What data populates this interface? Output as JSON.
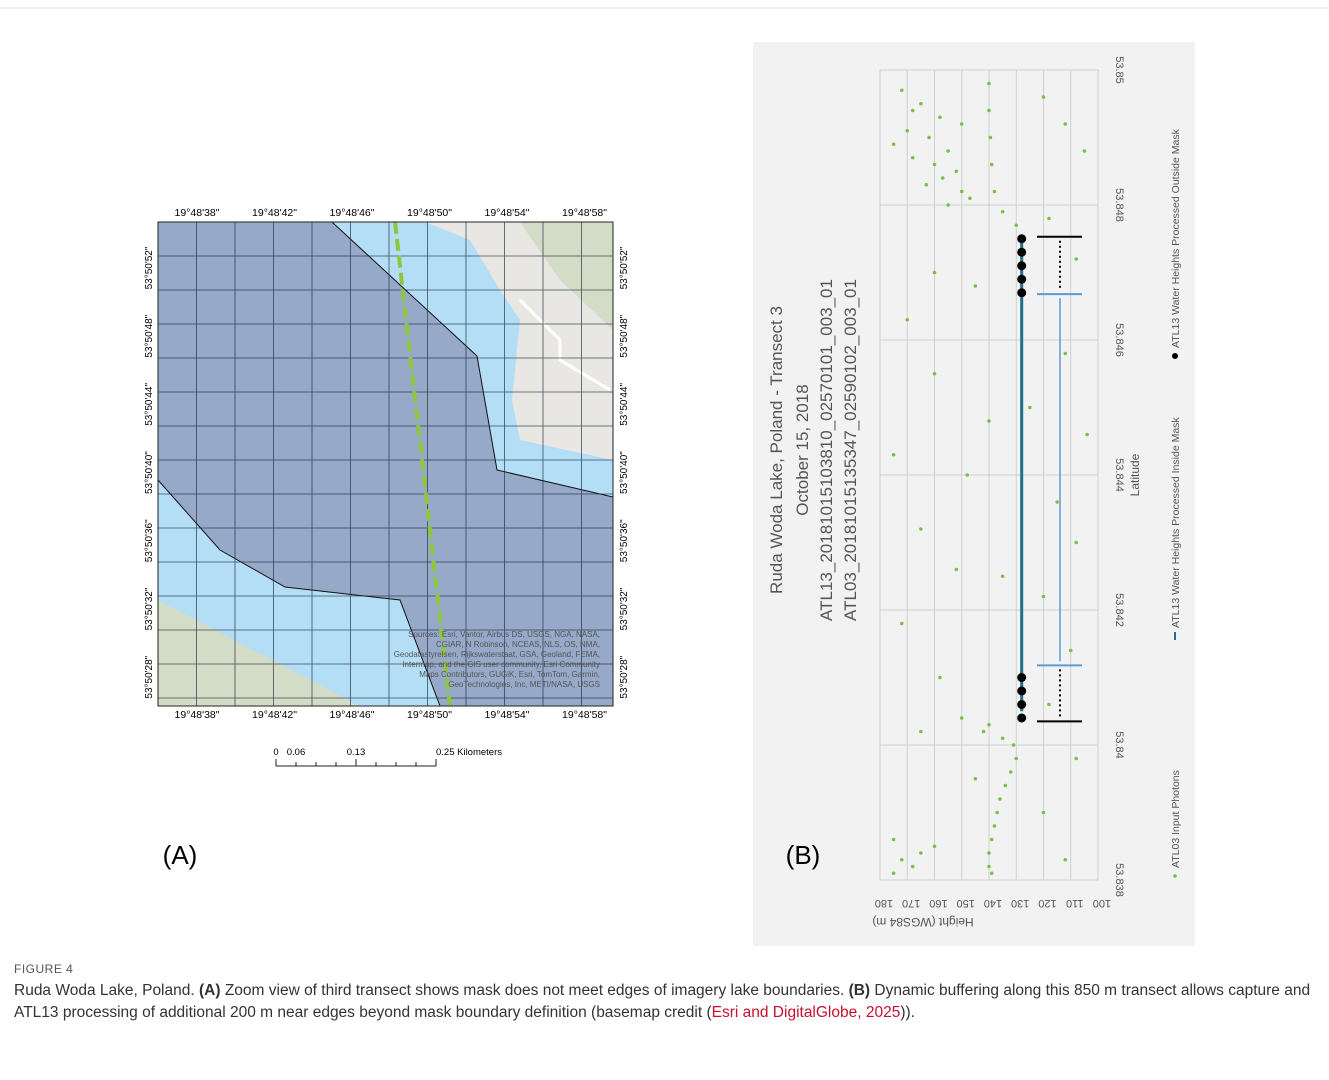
{
  "figure": {
    "panel_a": {
      "label": "(A)",
      "lon_labels": [
        "19°48'38\"",
        "19°48'42\"",
        "19°48'46\"",
        "19°48'50\"",
        "19°48'54\"",
        "19°48'58\""
      ],
      "lat_labels": [
        "53°50'52\"",
        "53°50'48\"",
        "53°50'44\"",
        "53°50'40\"",
        "53°50'36\"",
        "53°50'32\"",
        "53°50'28\""
      ],
      "attribution": [
        "Sources: Esri, Vantor, Airbus DS, USGS, NGA, NASA,",
        "CGIAR, N Robinson, NCEAS, NLS, OS, NMA,",
        "Geodatastyrelsen, Rijkswaterstaat, GSA, Geoland, FEMA,",
        "Intermap, and the GIS user community, Esri Community",
        "Maps Contributors, GUGiK, Esri, TomTom, Garmin,",
        "GeoTechnologies, Inc, METI/NASA, USGS"
      ],
      "scale_labels": [
        "0",
        "0.06",
        "0.13",
        "0.25 Kilometers"
      ]
    },
    "panel_b": {
      "label": "(B)",
      "chart_data": {
        "type": "scatter",
        "title": "Ruda Woda Lake, Poland - Transect 3",
        "subtitles": [
          "October 15, 2018",
          "ATL13_20181015103810_02570101_003_01",
          "ATL03_20181015135347_02590102_003_01"
        ],
        "x_label": "Latitude",
        "y_label": "Height (WGS84 m)",
        "xlim": [
          53.838,
          53.85
        ],
        "xticks": [
          53.838,
          53.84,
          53.842,
          53.844,
          53.846,
          53.848,
          53.85
        ],
        "ylim": [
          100,
          180
        ],
        "yticks": [
          100,
          110,
          120,
          130,
          140,
          150,
          160,
          170,
          180
        ],
        "grid": true,
        "series": [
          {
            "name": "ATL03 Input Photons",
            "color": "#7ac143",
            "mode": "points",
            "x": [
              53.8497,
              53.8495,
              53.8493,
              53.8491,
              53.849,
              53.8488,
              53.8487,
              53.8486,
              53.8485,
              53.8489,
              53.8492,
              53.8494,
              53.8484,
              53.8483,
              53.8482,
              53.8481,
              53.848,
              53.8498,
              53.8494,
              53.849,
              53.8486,
              53.8482,
              53.8479,
              53.8477,
              53.8496,
              53.8492,
              53.8488,
              53.8478,
              53.8472,
              53.8468,
              53.8463,
              53.8458,
              53.8455,
              53.845,
              53.8446,
              53.8443,
              53.844,
              53.8436,
              53.8432,
              53.843,
              53.8426,
              53.8422,
              53.8418,
              53.8414,
              53.841,
              53.8406,
              53.8402,
              53.8398,
              53.8395,
              53.839,
              53.8386,
              53.8383,
              53.847,
              53.8448,
              53.8425,
              53.8404,
              53.8403,
              53.8402,
              53.8401,
              53.84,
              53.8398,
              53.8396,
              53.8394,
              53.8392,
              53.839,
              53.8388,
              53.8386,
              53.8384,
              53.8382,
              53.8381,
              53.8383,
              53.8382,
              53.8384,
              53.8381,
              53.8385
            ],
            "y": [
              172,
              165,
              158,
              170,
              162,
              155,
              168,
              160,
              152,
              175,
              150,
              168,
              157,
              163,
              150,
              147,
              155,
              140,
              140,
              139.5,
              139,
              138,
              135,
              130,
              120,
              112,
              105,
              118,
              108,
              145,
              170,
              112,
              160,
              125,
              104,
              175,
              148,
              115,
              165,
              108,
              152,
              120,
              172,
              110,
              158,
              118,
              165,
              108,
              145,
              120,
              175,
              112,
              160,
              140,
              135,
              150,
              140,
              142,
              135,
              131,
              130,
              132,
              134,
              136,
              137,
              138,
              139,
              140,
              140,
              139,
              172,
              168,
              165,
              175,
              160
            ]
          },
          {
            "name": "ATL13 Water Heights Processed Inside Mask",
            "color": "#1f6f8b",
            "mode": "line",
            "x": [
              53.8405,
              53.8475
            ],
            "y": [
              128,
              128
            ]
          },
          {
            "name": "ATL13 Water Heights Processed Outside Mask",
            "color": "#000000",
            "mode": "points",
            "x": [
              53.8475,
              53.8473,
              53.8471,
              53.8469,
              53.8467,
              53.841,
              53.8408,
              53.8406,
              53.8404
            ],
            "y": [
              128,
              128,
              128,
              128,
              128,
              128,
              128,
              128,
              128
            ]
          }
        ]
      }
    },
    "caption": {
      "number": "FIGURE 4",
      "lead": "Ruda Woda Lake, Poland. ",
      "a_label": "(A)",
      "a_text": " Zoom view of third transect shows mask does not meet edges of imagery lake boundaries. ",
      "b_label": "(B)",
      "b_text": " Dynamic buffering along this 850 m transect allows capture and ATL13 processing of additional 200 m near edges beyond mask boundary definition (basemap credit (",
      "link": "Esri and DigitalGlobe, 2025",
      "end": "))."
    }
  }
}
